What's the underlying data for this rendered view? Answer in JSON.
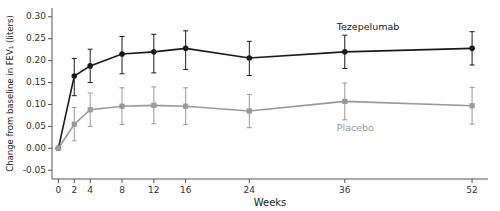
{
  "chart_data": {
    "type": "line",
    "x": [
      0,
      2,
      4,
      8,
      12,
      16,
      24,
      36,
      52
    ],
    "series": [
      {
        "name": "Tezepelumab",
        "color": "#1a1a1a",
        "marker": "circle",
        "values": [
          0.0,
          0.165,
          0.188,
          0.215,
          0.22,
          0.228,
          0.206,
          0.22,
          0.228
        ],
        "error_lo": [
          0.0,
          0.045,
          0.038,
          0.045,
          0.048,
          0.048,
          0.04,
          0.038,
          0.038
        ],
        "error_hi": [
          0.0,
          0.04,
          0.038,
          0.04,
          0.04,
          0.04,
          0.038,
          0.038,
          0.038
        ]
      },
      {
        "name": "Placebo",
        "color": "#999999",
        "marker": "square",
        "values": [
          0.0,
          0.055,
          0.088,
          0.096,
          0.098,
          0.096,
          0.085,
          0.107,
          0.097
        ],
        "error_lo": [
          0.0,
          0.038,
          0.038,
          0.042,
          0.042,
          0.042,
          0.038,
          0.042,
          0.042
        ],
        "error_hi": [
          0.0,
          0.038,
          0.038,
          0.042,
          0.042,
          0.042,
          0.038,
          0.042,
          0.042
        ]
      }
    ],
    "x_label": "Weeks",
    "y_label": "Change from baseline in FEV₁ (liters)",
    "xlim": [
      -0.8,
      54
    ],
    "ylim": [
      -0.07,
      0.32
    ],
    "xticks": [
      0,
      2,
      4,
      8,
      12,
      16,
      24,
      36,
      52
    ],
    "yticks": [
      -0.05,
      {
        "value": 0.0,
        "label": "0.00"
      },
      0.05,
      {
        "value": 0.1,
        "label": "0.10"
      },
      0.15,
      {
        "value": 0.2,
        "label": "0.20"
      },
      0.25,
      {
        "value": 0.3,
        "label": "0.30"
      }
    ],
    "grid": false
  }
}
